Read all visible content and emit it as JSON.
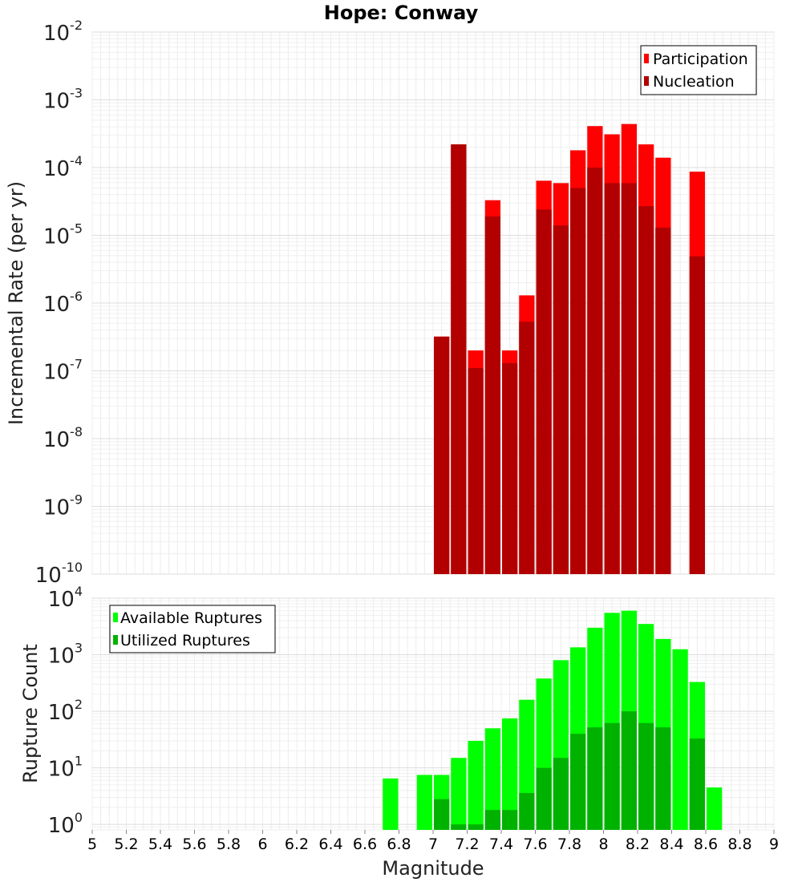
{
  "chart_data": [
    {
      "type": "bar",
      "title": "Hope: Conway",
      "ylabel": "Incremental Rate (per yr)",
      "xlabel": "",
      "xlim": [
        5,
        9
      ],
      "ylim": [
        1e-10,
        0.01
      ],
      "yscale": "log",
      "grid": true,
      "legend_position": "top-right",
      "bin_width": 0.1,
      "x_ticks": [
        "5",
        "5.2",
        "5.4",
        "5.6",
        "5.8",
        "6",
        "6.2",
        "6.4",
        "6.6",
        "6.8",
        "7",
        "7.2",
        "7.4",
        "7.6",
        "7.8",
        "8",
        "8.2",
        "8.4",
        "8.6",
        "8.8",
        "9"
      ],
      "y_ticks": [
        {
          "base": "10",
          "exp": "-2",
          "value": 0.01
        },
        {
          "base": "10",
          "exp": "-3",
          "value": 0.001
        },
        {
          "base": "10",
          "exp": "-4",
          "value": 0.0001
        },
        {
          "base": "10",
          "exp": "-5",
          "value": 1e-05
        },
        {
          "base": "10",
          "exp": "-6",
          "value": 1e-06
        },
        {
          "base": "10",
          "exp": "-7",
          "value": 1e-07
        },
        {
          "base": "10",
          "exp": "-8",
          "value": 1e-08
        },
        {
          "base": "10",
          "exp": "-9",
          "value": 1e-09
        },
        {
          "base": "10",
          "exp": "-10",
          "value": 1e-10
        }
      ],
      "x": [
        7.05,
        7.15,
        7.25,
        7.35,
        7.45,
        7.55,
        7.65,
        7.75,
        7.85,
        7.95,
        8.05,
        8.15,
        8.25,
        8.35,
        8.45,
        8.55
      ],
      "series": [
        {
          "name": "Participation",
          "color": "#ff0000",
          "values": [
            3.2e-07,
            0.00022,
            2e-07,
            3.3e-05,
            2e-07,
            1.3e-06,
            6.4e-05,
            5.9e-05,
            0.00018,
            0.00041,
            0.00031,
            0.00044,
            0.00022,
            0.00014,
            null,
            8.7e-05
          ]
        },
        {
          "name": "Nucleation",
          "color": "#b20000",
          "values": [
            3.2e-07,
            0.00022,
            1.1e-07,
            1.9e-05,
            1.3e-07,
            5.3e-07,
            2.4e-05,
            1.4e-05,
            5e-05,
            0.0001,
            5.9e-05,
            5.9e-05,
            2.7e-05,
            1.3e-05,
            null,
            4.9e-06
          ]
        }
      ]
    },
    {
      "type": "bar",
      "title": "",
      "ylabel": "Rupture Count",
      "xlabel": "Magnitude",
      "xlim": [
        5,
        9
      ],
      "ylim": [
        0.8,
        10000
      ],
      "yscale": "log",
      "grid": true,
      "legend_position": "top-left",
      "bin_width": 0.1,
      "x_ticks": [
        "5",
        "5.2",
        "5.4",
        "5.6",
        "5.8",
        "6",
        "6.2",
        "6.4",
        "6.6",
        "6.8",
        "7",
        "7.2",
        "7.4",
        "7.6",
        "7.8",
        "8",
        "8.2",
        "8.4",
        "8.6",
        "8.8",
        "9"
      ],
      "y_ticks": [
        {
          "base": "10",
          "exp": "4",
          "value": 10000
        },
        {
          "base": "10",
          "exp": "3",
          "value": 1000
        },
        {
          "base": "10",
          "exp": "2",
          "value": 100
        },
        {
          "base": "10",
          "exp": "1",
          "value": 10
        },
        {
          "base": "10",
          "exp": "0",
          "value": 1
        }
      ],
      "x": [
        6.75,
        6.85,
        6.95,
        7.05,
        7.15,
        7.25,
        7.35,
        7.45,
        7.55,
        7.65,
        7.75,
        7.85,
        7.95,
        8.05,
        8.15,
        8.25,
        8.35,
        8.45,
        8.55,
        8.65
      ],
      "series": [
        {
          "name": "Available Ruptures",
          "color": "#00ff00",
          "values": [
            6.5,
            null,
            7.5,
            7.5,
            15,
            30,
            50,
            75,
            160,
            380,
            800,
            1350,
            3000,
            5500,
            6000,
            3500,
            1900,
            1250,
            330,
            4.5
          ]
        },
        {
          "name": "Utilized Ruptures",
          "color": "#00b200",
          "values": [
            null,
            null,
            null,
            2.8,
            1.0,
            1.0,
            1.8,
            1.8,
            3.6,
            10,
            15,
            40,
            52,
            62,
            100,
            62,
            52,
            null,
            33,
            null
          ]
        }
      ]
    }
  ]
}
